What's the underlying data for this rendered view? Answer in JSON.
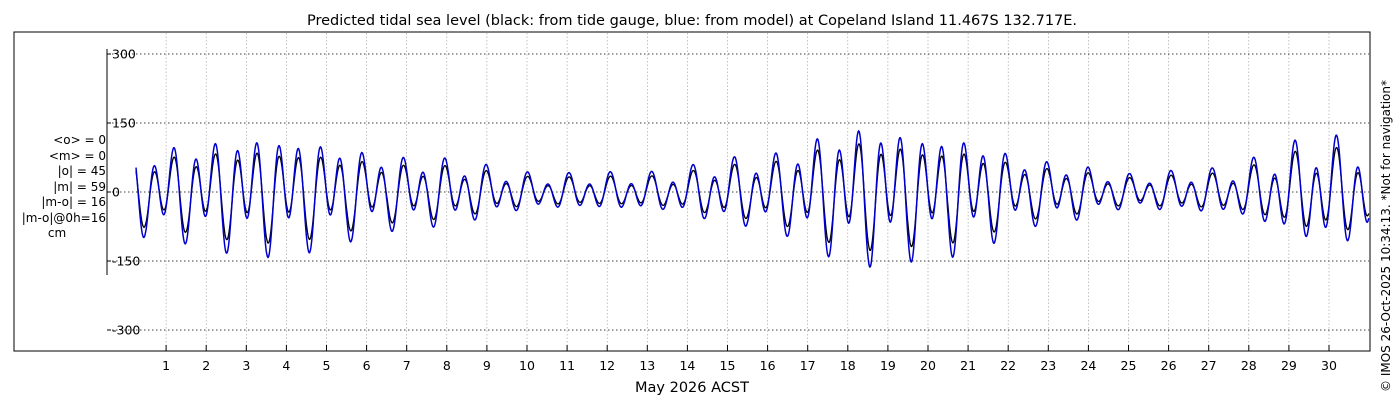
{
  "chart_data": {
    "type": "line",
    "title": "Predicted tidal sea level (black: from tide gauge, blue: from model) at Copeland Island 11.467S 132.717E.",
    "xlabel": "May 2026 ACST",
    "ylabel": "",
    "units": "cm",
    "xlim": [
      0.25,
      31
    ],
    "ylim": [
      -320,
      320
    ],
    "yticks": [
      300,
      150,
      0,
      -150,
      -300
    ],
    "ytick_labels": [
      "300",
      "150",
      "0",
      "-150",
      "-300"
    ],
    "xticks": [
      1,
      2,
      3,
      4,
      5,
      6,
      7,
      8,
      9,
      10,
      11,
      12,
      13,
      14,
      15,
      16,
      17,
      18,
      19,
      20,
      21,
      22,
      23,
      24,
      25,
      26,
      27,
      28,
      29,
      30
    ],
    "xtick_labels": [
      "1",
      "2",
      "3",
      "4",
      "5",
      "6",
      "7",
      "8",
      "9",
      "10",
      "11",
      "12",
      "13",
      "14",
      "15",
      "16",
      "17",
      "18",
      "19",
      "20",
      "21",
      "22",
      "23",
      "24",
      "25",
      "26",
      "27",
      "28",
      "29",
      "30"
    ],
    "grid": true,
    "series": [
      {
        "name": "from tide gauge",
        "color": "#000000",
        "description": "Observed predicted tidal sea level; semi-diurnal, springs near May 2-4, 17-20 and 30 (about +/-100 cm), neaps near May 9-11 and 24-26 (about +/-25 cm)"
      },
      {
        "name": "from model",
        "color": "#0000cc",
        "description": "Model predicted tidal sea level; larger range than gauge, peaks about +140 cm and troughs about -160 cm near May 18-20"
      }
    ],
    "stats": [
      "<o> = 0",
      "<m> = 0",
      "|o| = 45",
      "|m| = 59",
      "|m-o| = 16",
      "|m-o|@0h=16",
      "cm"
    ]
  },
  "credit": "© IMOS 26-Oct-2025 10:34:13. *Not for navigation*"
}
